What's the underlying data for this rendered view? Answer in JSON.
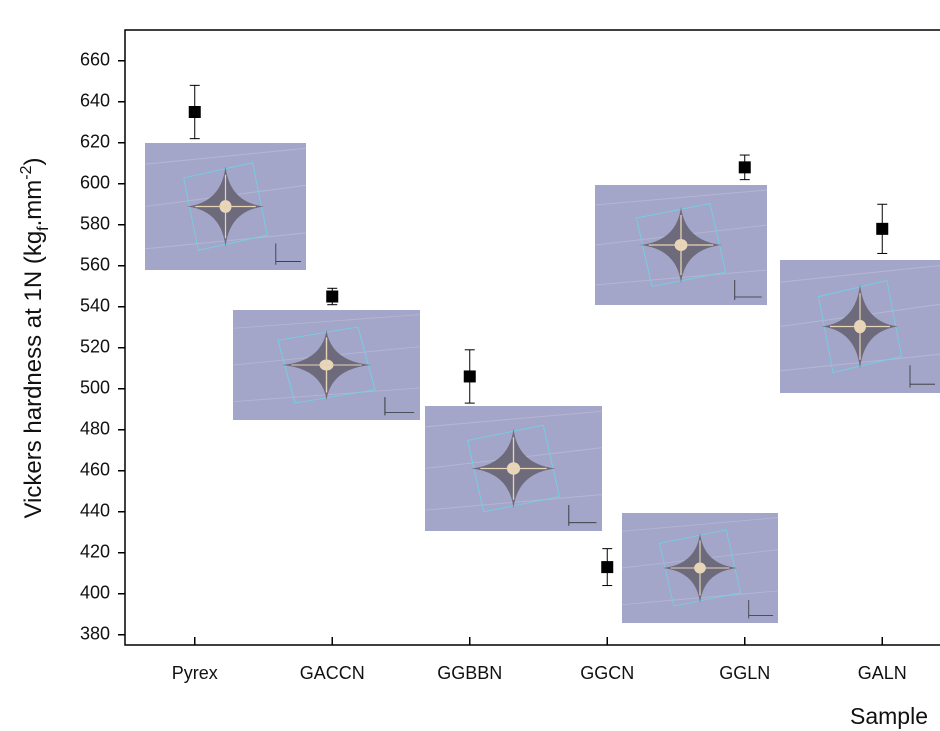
{
  "chart_data": {
    "type": "scatter",
    "ylabel_parts": [
      "Vickers hardness at 1N (kg",
      "f",
      ".mm",
      "-2",
      ")"
    ],
    "xlabel": "Sample",
    "categories": [
      "Pyrex",
      "GACCN",
      "GGBBN",
      "GGCN",
      "GGLN",
      "GALN"
    ],
    "series": [
      {
        "color": "#000000",
        "marker": "square",
        "values": [
          635,
          545,
          506,
          413,
          608,
          578
        ],
        "errors": [
          13,
          4,
          13,
          9,
          6,
          12
        ]
      }
    ],
    "ylim": [
      375,
      675
    ],
    "yticks": [
      380,
      400,
      420,
      440,
      460,
      480,
      500,
      520,
      540,
      560,
      580,
      600,
      620,
      640,
      660
    ],
    "grid": false
  }
}
